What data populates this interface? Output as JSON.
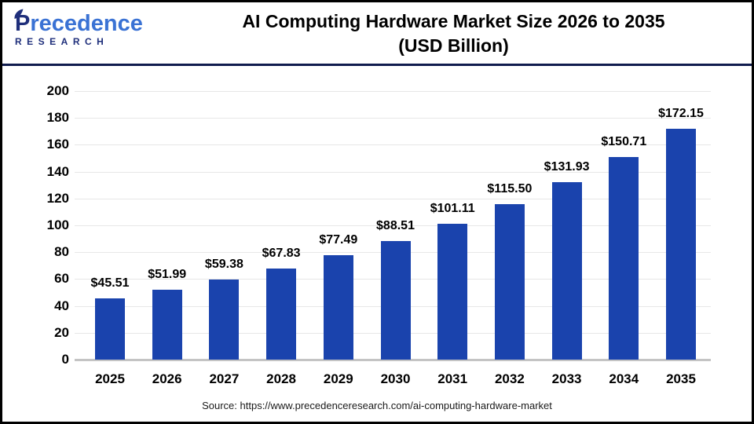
{
  "logo": {
    "brand_first": "P",
    "brand_rest": "recedence",
    "subtitle": "RESEARCH"
  },
  "header": {
    "title_line1": "AI Computing Hardware Market Size 2026 to 2035",
    "title_line2": "(USD Billion)"
  },
  "footer": {
    "source": "Source: https://www.precedenceresearch.com/ai-computing-hardware-market"
  },
  "colors": {
    "bar": "#1a43ad",
    "divider": "#101c4e",
    "grid": "#e7e7e7",
    "baseline": "#c4c4c4",
    "logo_navy": "#1f2f7b",
    "logo_blue": "#3a72d4"
  },
  "chart_data": {
    "type": "bar",
    "title": "AI Computing Hardware Market Size 2026 to 2035 (USD Billion)",
    "categories": [
      "2025",
      "2026",
      "2027",
      "2028",
      "2029",
      "2030",
      "2031",
      "2032",
      "2033",
      "2034",
      "2035"
    ],
    "values": [
      45.51,
      51.99,
      59.38,
      67.83,
      77.49,
      88.51,
      101.11,
      115.5,
      131.93,
      150.71,
      172.15
    ],
    "value_labels": [
      "$45.51",
      "$51.99",
      "$59.38",
      "$67.83",
      "$77.49",
      "$88.51",
      "$101.11",
      "$115.50",
      "$131.93",
      "$150.71",
      "$172.15"
    ],
    "xlabel": "",
    "ylabel": "",
    "ylim": [
      0,
      200
    ],
    "yticks": [
      0,
      20,
      40,
      60,
      80,
      100,
      120,
      140,
      160,
      180,
      200
    ],
    "grid": true,
    "legend": "none",
    "bar_color": "#1a43ad"
  }
}
